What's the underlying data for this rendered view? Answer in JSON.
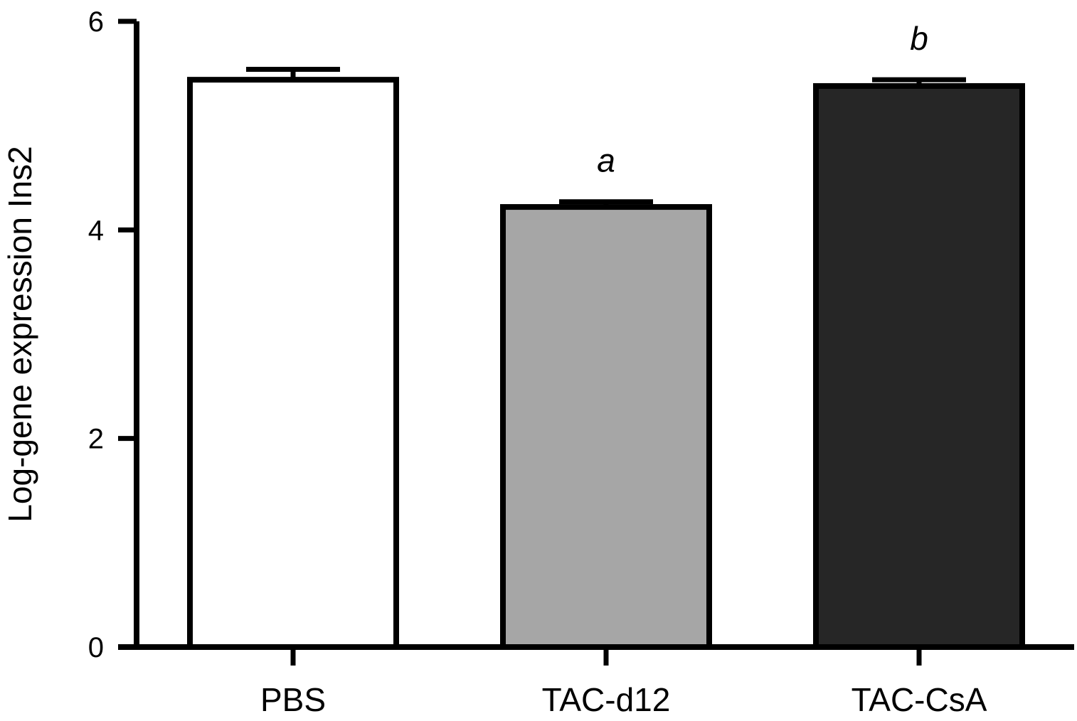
{
  "chart_data": {
    "type": "bar",
    "title": "",
    "xlabel": "",
    "ylabel": "Log-gene expression Ins2",
    "ylim": [
      0,
      6
    ],
    "yticks": [
      "0",
      "2",
      "4",
      "6"
    ],
    "grid": false,
    "categories": [
      "PBS",
      "TAC-d12",
      "TAC-CsA"
    ],
    "values": [
      5.44,
      4.22,
      5.38
    ],
    "errors": [
      0.1,
      0.05,
      0.06
    ],
    "annotations": [
      "",
      "a",
      "b"
    ],
    "colors": {
      "fills": [
        "#ffffff",
        "#a6a6a6",
        "#262626"
      ],
      "stroke": "#000000"
    }
  }
}
